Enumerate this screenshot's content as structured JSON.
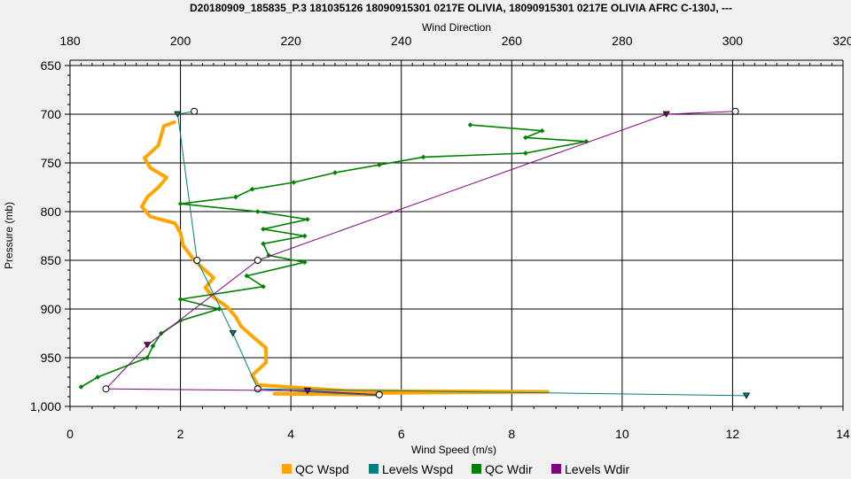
{
  "chart_data": {
    "type": "line",
    "title": "D20180909_185835_P.3 181035126 18090915301 0217E OLIVIA, 18090915301 0217E OLIVIA AFRC C-130J, ---",
    "xlabel_bottom": "Wind Speed (m/s)",
    "xlabel_top": "Wind Direction",
    "ylabel": "Pressure (mb)",
    "x_bottom_range": [
      0,
      14
    ],
    "x_bottom_ticks": [
      "0",
      "2",
      "4",
      "6",
      "8",
      "10",
      "12",
      "14"
    ],
    "x_top_range": [
      180,
      320
    ],
    "x_top_ticks": [
      "180",
      "200",
      "220",
      "240",
      "260",
      "280",
      "300",
      "320"
    ],
    "y_range": [
      650,
      1000
    ],
    "y_inverted": true,
    "y_ticks": [
      "650",
      "700",
      "750",
      "800",
      "850",
      "900",
      "950",
      "1,000"
    ],
    "grid": true,
    "legend_position": "bottom",
    "series": [
      {
        "name": "QC Wspd",
        "axis": "bottom",
        "color": "#ffa500",
        "marker": "small-dot",
        "points": [
          [
            1.9,
            708
          ],
          [
            1.7,
            712
          ],
          [
            1.65,
            722
          ],
          [
            1.6,
            732
          ],
          [
            1.35,
            745
          ],
          [
            1.45,
            755
          ],
          [
            1.75,
            765
          ],
          [
            1.6,
            775
          ],
          [
            1.4,
            785
          ],
          [
            1.3,
            795
          ],
          [
            1.45,
            805
          ],
          [
            1.9,
            812
          ],
          [
            2.0,
            822
          ],
          [
            2.05,
            835
          ],
          [
            2.25,
            850
          ],
          [
            2.4,
            858
          ],
          [
            2.6,
            868
          ],
          [
            2.45,
            878
          ],
          [
            2.6,
            888
          ],
          [
            2.85,
            898
          ],
          [
            3.0,
            908
          ],
          [
            3.1,
            918
          ],
          [
            3.3,
            928
          ],
          [
            3.55,
            940
          ],
          [
            3.55,
            955
          ],
          [
            3.3,
            968
          ],
          [
            3.4,
            978
          ],
          [
            5.0,
            984
          ],
          [
            8.65,
            985
          ],
          [
            3.7,
            987
          ],
          [
            5.6,
            988
          ]
        ]
      },
      {
        "name": "Levels Wspd",
        "axis": "bottom",
        "color": "#008080",
        "marker": "circle-triangle",
        "points": [
          [
            2.25,
            697
          ],
          [
            1.95,
            700
          ],
          [
            2.3,
            850
          ],
          [
            2.95,
            925
          ],
          [
            3.4,
            982
          ],
          [
            12.25,
            989
          ],
          [
            3.4,
            982
          ],
          [
            5.6,
            989
          ]
        ]
      },
      {
        "name": "QC Wdir",
        "axis": "top",
        "color": "#008000",
        "marker": "diamond",
        "points": [
          [
            252.5,
            711
          ],
          [
            265.5,
            717
          ],
          [
            262.5,
            724
          ],
          [
            273.5,
            728
          ],
          [
            262.5,
            740
          ],
          [
            244.0,
            744
          ],
          [
            236.0,
            752
          ],
          [
            228.0,
            760
          ],
          [
            220.5,
            770
          ],
          [
            213.0,
            777
          ],
          [
            210.0,
            785
          ],
          [
            200.0,
            792
          ],
          [
            214.0,
            800
          ],
          [
            223.0,
            808
          ],
          [
            215.0,
            818
          ],
          [
            222.5,
            825
          ],
          [
            215.0,
            833
          ],
          [
            216.0,
            845
          ],
          [
            222.5,
            852
          ],
          [
            212.0,
            866
          ],
          [
            215.0,
            877
          ],
          [
            200.0,
            890
          ],
          [
            207.0,
            900
          ],
          [
            200.0,
            912
          ],
          [
            196.5,
            925
          ],
          [
            195.0,
            938
          ],
          [
            194.0,
            950
          ],
          [
            185.0,
            970
          ],
          [
            182.0,
            980
          ]
        ]
      },
      {
        "name": "Levels Wdir",
        "axis": "top",
        "color": "#800080",
        "marker": "circle-triangle",
        "points": [
          [
            300.5,
            697
          ],
          [
            288.0,
            700
          ],
          [
            214.0,
            850
          ],
          [
            194.0,
            937
          ],
          [
            186.5,
            982
          ],
          [
            223.0,
            984
          ],
          [
            236.0,
            988
          ]
        ]
      }
    ]
  }
}
